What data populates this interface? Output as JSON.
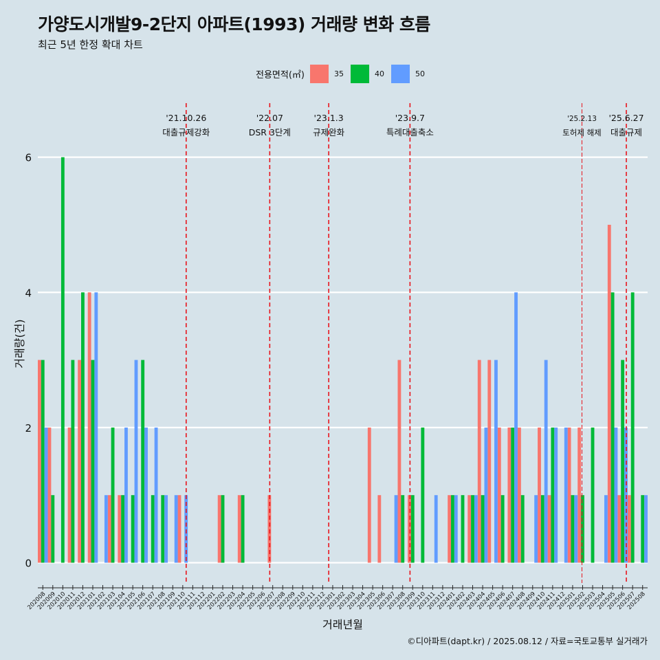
{
  "title": "가양도시개발9-2단지 아파트(1993) 거래량 변화 흐름",
  "subtitle": "최근 5년 한정 확대 차트",
  "caption": "©디아파트(dapt.kr) / 2025.08.12 / 자료=국토교통부 실거래가",
  "colors": {
    "s35": "#f8766d",
    "s40": "#00ba38",
    "s50": "#619cff",
    "vline": "#e8141c",
    "grid": "#ffffff",
    "background": "#d6e3ea"
  },
  "chart_data": {
    "type": "bar",
    "xlabel": "거래년월",
    "ylabel": "거래량(건)",
    "ylim": [
      -0.3,
      6.8
    ],
    "yticks": [
      0,
      2,
      4,
      6
    ],
    "legend": {
      "title": "전용면적(㎡)",
      "placement": "top"
    },
    "categories": [
      "202008",
      "202009",
      "202010",
      "202011",
      "202012",
      "202101",
      "202102",
      "202103",
      "202104",
      "202105",
      "202106",
      "202107",
      "202108",
      "202109",
      "202110",
      "202111",
      "202112",
      "202201",
      "202202",
      "202203",
      "202204",
      "202205",
      "202206",
      "202207",
      "202208",
      "202209",
      "202210",
      "202211",
      "202212",
      "202301",
      "202302",
      "202303",
      "202304",
      "202305",
      "202306",
      "202307",
      "202308",
      "202309",
      "202310",
      "202311",
      "202312",
      "202401",
      "202402",
      "202403",
      "202404",
      "202405",
      "202406",
      "202407",
      "202408",
      "202409",
      "202410",
      "202411",
      "202412",
      "202501",
      "202502",
      "202503",
      "202504",
      "202505",
      "202506",
      "202507",
      "202508"
    ],
    "series": [
      {
        "name": "35",
        "values": [
          3,
          2,
          0,
          2,
          3,
          4,
          0,
          1,
          1,
          0,
          0,
          0,
          0,
          0,
          1,
          0,
          0,
          0,
          1,
          0,
          1,
          0,
          0,
          1,
          0,
          0,
          0,
          0,
          0,
          0,
          0,
          0,
          0,
          2,
          1,
          0,
          3,
          1,
          0,
          0,
          0,
          1,
          0,
          1,
          3,
          3,
          2,
          2,
          2,
          0,
          2,
          1,
          0,
          2,
          2,
          0,
          0,
          5,
          1,
          1,
          0
        ]
      },
      {
        "name": "40",
        "values": [
          3,
          1,
          6,
          3,
          4,
          3,
          0,
          2,
          1,
          1,
          3,
          1,
          1,
          0,
          0,
          0,
          0,
          0,
          1,
          0,
          1,
          0,
          0,
          0,
          0,
          0,
          0,
          0,
          0,
          0,
          0,
          0,
          0,
          0,
          0,
          0,
          1,
          1,
          2,
          0,
          0,
          1,
          1,
          1,
          1,
          0,
          1,
          2,
          1,
          0,
          1,
          2,
          0,
          1,
          1,
          2,
          0,
          4,
          3,
          4,
          1
        ]
      },
      {
        "name": "50",
        "values": [
          2,
          0,
          0,
          0,
          0,
          4,
          1,
          0,
          2,
          3,
          2,
          2,
          1,
          1,
          1,
          0,
          0,
          0,
          0,
          0,
          0,
          0,
          0,
          0,
          0,
          0,
          0,
          0,
          0,
          0,
          0,
          0,
          0,
          0,
          0,
          1,
          0,
          0,
          0,
          1,
          0,
          1,
          0,
          1,
          2,
          3,
          0,
          4,
          0,
          1,
          3,
          2,
          2,
          1,
          0,
          0,
          1,
          2,
          2,
          0,
          1
        ]
      }
    ],
    "events": [
      {
        "at": "202110",
        "month_offset": 0.84,
        "date": "'21.10.26",
        "label": "대출규제강화",
        "style": "dashed"
      },
      {
        "at": "202207",
        "month_offset": 0.2,
        "date": "'22.07",
        "label": "DSR 3단계",
        "style": "dashed"
      },
      {
        "at": "202301",
        "month_offset": 0.1,
        "date": "'23.1.3",
        "label": "규제완화",
        "style": "dashed"
      },
      {
        "at": "202309",
        "month_offset": 0.23,
        "date": "'23.9.7",
        "label": "특례대출축소",
        "style": "dashed"
      },
      {
        "at": "202502",
        "month_offset": 0.43,
        "date": "'25.2.13",
        "label": "토허제 해제",
        "style": "thin"
      },
      {
        "at": "202506",
        "month_offset": 0.87,
        "date": "'25.6.27",
        "label": "대출규제",
        "style": "dashed"
      }
    ]
  }
}
